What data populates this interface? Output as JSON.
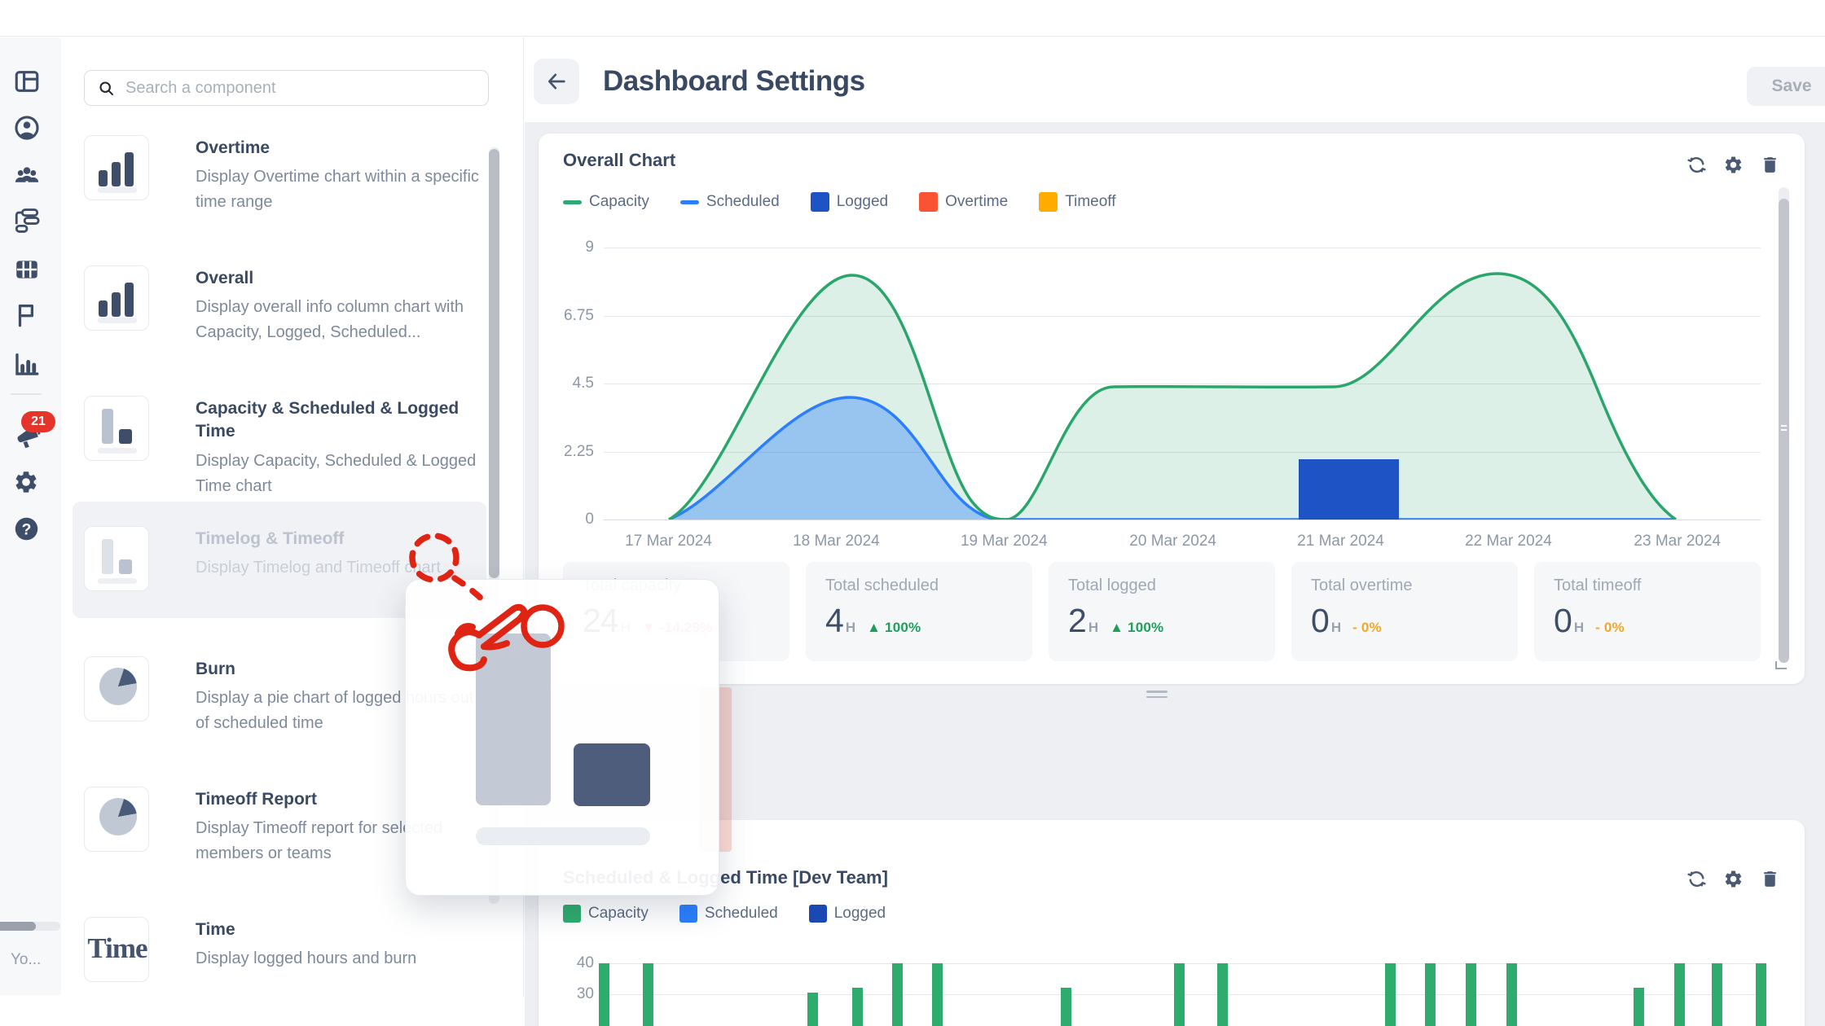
{
  "rail": {
    "icons": [
      "layout",
      "user",
      "team",
      "gantt",
      "table",
      "flag",
      "bar-chart"
    ],
    "notification_badge": "21",
    "bottom_icons": [
      "announcement",
      "settings",
      "help"
    ],
    "bottom_label": "Yo..."
  },
  "panel": {
    "search_placeholder": "Search a component",
    "items": [
      {
        "title": "Overtime",
        "description": "Display Overtime chart within a specific time range",
        "thumb": "bars"
      },
      {
        "title": "Overall",
        "description": "Display overall info column chart with Capacity, Logged, Scheduled...",
        "thumb": "bars"
      },
      {
        "title": "Capacity & Scheduled & Logged Time",
        "description": "Display Capacity, Scheduled & Logged Time chart",
        "thumb": "duo"
      },
      {
        "title": "Timelog & Timeoff",
        "description": "Display Timelog and Timeoff chart",
        "thumb": "duo-faded",
        "state": "dragging"
      },
      {
        "title": "Burn",
        "description": "Display a pie chart of logged hours out of scheduled time",
        "thumb": "pie"
      },
      {
        "title": "Timeoff Report",
        "description": "Display Timeoff report for selected members or teams",
        "thumb": "pie"
      },
      {
        "title": "Time",
        "description": "Display logged hours and burn",
        "thumb": "time"
      }
    ]
  },
  "header": {
    "title": "Dashboard Settings",
    "save_label": "Save"
  },
  "overall_card": {
    "title": "Overall Chart",
    "legend": [
      {
        "label": "Capacity",
        "color": "#2fa971",
        "swatch": "line"
      },
      {
        "label": "Scheduled",
        "color": "#2b7fff",
        "swatch": "line"
      },
      {
        "label": "Logged",
        "color": "#1d53c4",
        "swatch": "square"
      },
      {
        "label": "Overtime",
        "color": "#f95334",
        "swatch": "square"
      },
      {
        "label": "Timeoff",
        "color": "#ffab00",
        "swatch": "square"
      }
    ],
    "stats": [
      {
        "label": "Total capacity",
        "value": "24",
        "unit": "H",
        "delta_prefix": "▼",
        "delta": "-14.29%",
        "delta_color": "#f87168"
      },
      {
        "label": "Total scheduled",
        "value": "4",
        "unit": "H",
        "delta_prefix": "▲",
        "delta": "100%",
        "delta_color": "#1f9d5b"
      },
      {
        "label": "Total logged",
        "value": "2",
        "unit": "H",
        "delta_prefix": "▲",
        "delta": "100%",
        "delta_color": "#1f9d5b"
      },
      {
        "label": "Total overtime",
        "value": "0",
        "unit": "H",
        "delta_prefix": "-",
        "delta": "0%",
        "delta_color": "#f5a623"
      },
      {
        "label": "Total timeoff",
        "value": "0",
        "unit": "H",
        "delta_prefix": "-",
        "delta": "0%",
        "delta_color": "#f5a623"
      }
    ]
  },
  "team_card": {
    "title": "Scheduled & Logged Time [Dev Team]",
    "legend": [
      {
        "label": "Capacity",
        "color": "#2eac6d"
      },
      {
        "label": "Scheduled",
        "color": "#2b7fff"
      },
      {
        "label": "Logged",
        "color": "#1b49b4"
      }
    ]
  },
  "chart_data": [
    {
      "type": "area",
      "title": "Overall Chart",
      "x": [
        "17 Mar 2024",
        "18 Mar 2024",
        "19 Mar 2024",
        "20 Mar 2024",
        "21 Mar 2024",
        "22 Mar 2024",
        "23 Mar 2024"
      ],
      "x_tick_pct": [
        5.6,
        20.1,
        34.6,
        49.2,
        63.7,
        78.2,
        92.8
      ],
      "ylim": [
        0,
        9
      ],
      "yticks": [
        0,
        2.25,
        4.5,
        6.75,
        9
      ],
      "grid": true,
      "legend_position": "top",
      "series": [
        {
          "name": "Capacity",
          "type": "line-area",
          "color": "#2fa971",
          "values": [
            0,
            8.1,
            0,
            4.4,
            4.4,
            8.1,
            0
          ]
        },
        {
          "name": "Scheduled",
          "type": "line-area",
          "color": "#2b7fff",
          "values": [
            0,
            4.05,
            0,
            0,
            0,
            0,
            0
          ]
        },
        {
          "name": "Logged",
          "type": "bar",
          "color": "#1d53c4",
          "values": [
            null,
            null,
            null,
            null,
            2,
            null,
            null
          ],
          "bar_geometry": {
            "x_pct": 60.1,
            "width_pct": 8.6,
            "value": 2
          }
        },
        {
          "name": "Overtime",
          "type": "bar",
          "color": "#f95334",
          "values": [
            null,
            null,
            null,
            null,
            null,
            null,
            null
          ]
        },
        {
          "name": "Timeoff",
          "type": "bar",
          "color": "#ffab00",
          "values": [
            null,
            null,
            null,
            null,
            null,
            null,
            null
          ]
        }
      ]
    },
    {
      "type": "bar",
      "title": "Scheduled & Logged Time [Dev Team]",
      "note": "chart cut off by viewport bottom; visible y window roughly 28-42",
      "yticks_visible": [
        40,
        30
      ],
      "ylabel_values": [
        "40",
        "30"
      ],
      "series": [
        {
          "name": "Capacity",
          "color": "#2eac6d",
          "bars": [
            {
              "x_pct": -0.4,
              "value": 40
            },
            {
              "x_pct": 3.4,
              "value": 40
            },
            {
              "x_pct": 17.6,
              "value": 30.5
            },
            {
              "x_pct": 21.5,
              "value": 32
            },
            {
              "x_pct": 24.9,
              "value": 40
            },
            {
              "x_pct": 28.4,
              "value": 40
            },
            {
              "x_pct": 39.5,
              "value": 32
            },
            {
              "x_pct": 49.3,
              "value": 40
            },
            {
              "x_pct": 53.0,
              "value": 40
            },
            {
              "x_pct": 67.5,
              "value": 40
            },
            {
              "x_pct": 71.0,
              "value": 40
            },
            {
              "x_pct": 74.5,
              "value": 40
            },
            {
              "x_pct": 78.0,
              "value": 40
            },
            {
              "x_pct": 89.0,
              "value": 32
            },
            {
              "x_pct": 92.5,
              "value": 40
            },
            {
              "x_pct": 95.8,
              "value": 40
            },
            {
              "x_pct": 99.6,
              "value": 40
            }
          ]
        }
      ]
    }
  ]
}
